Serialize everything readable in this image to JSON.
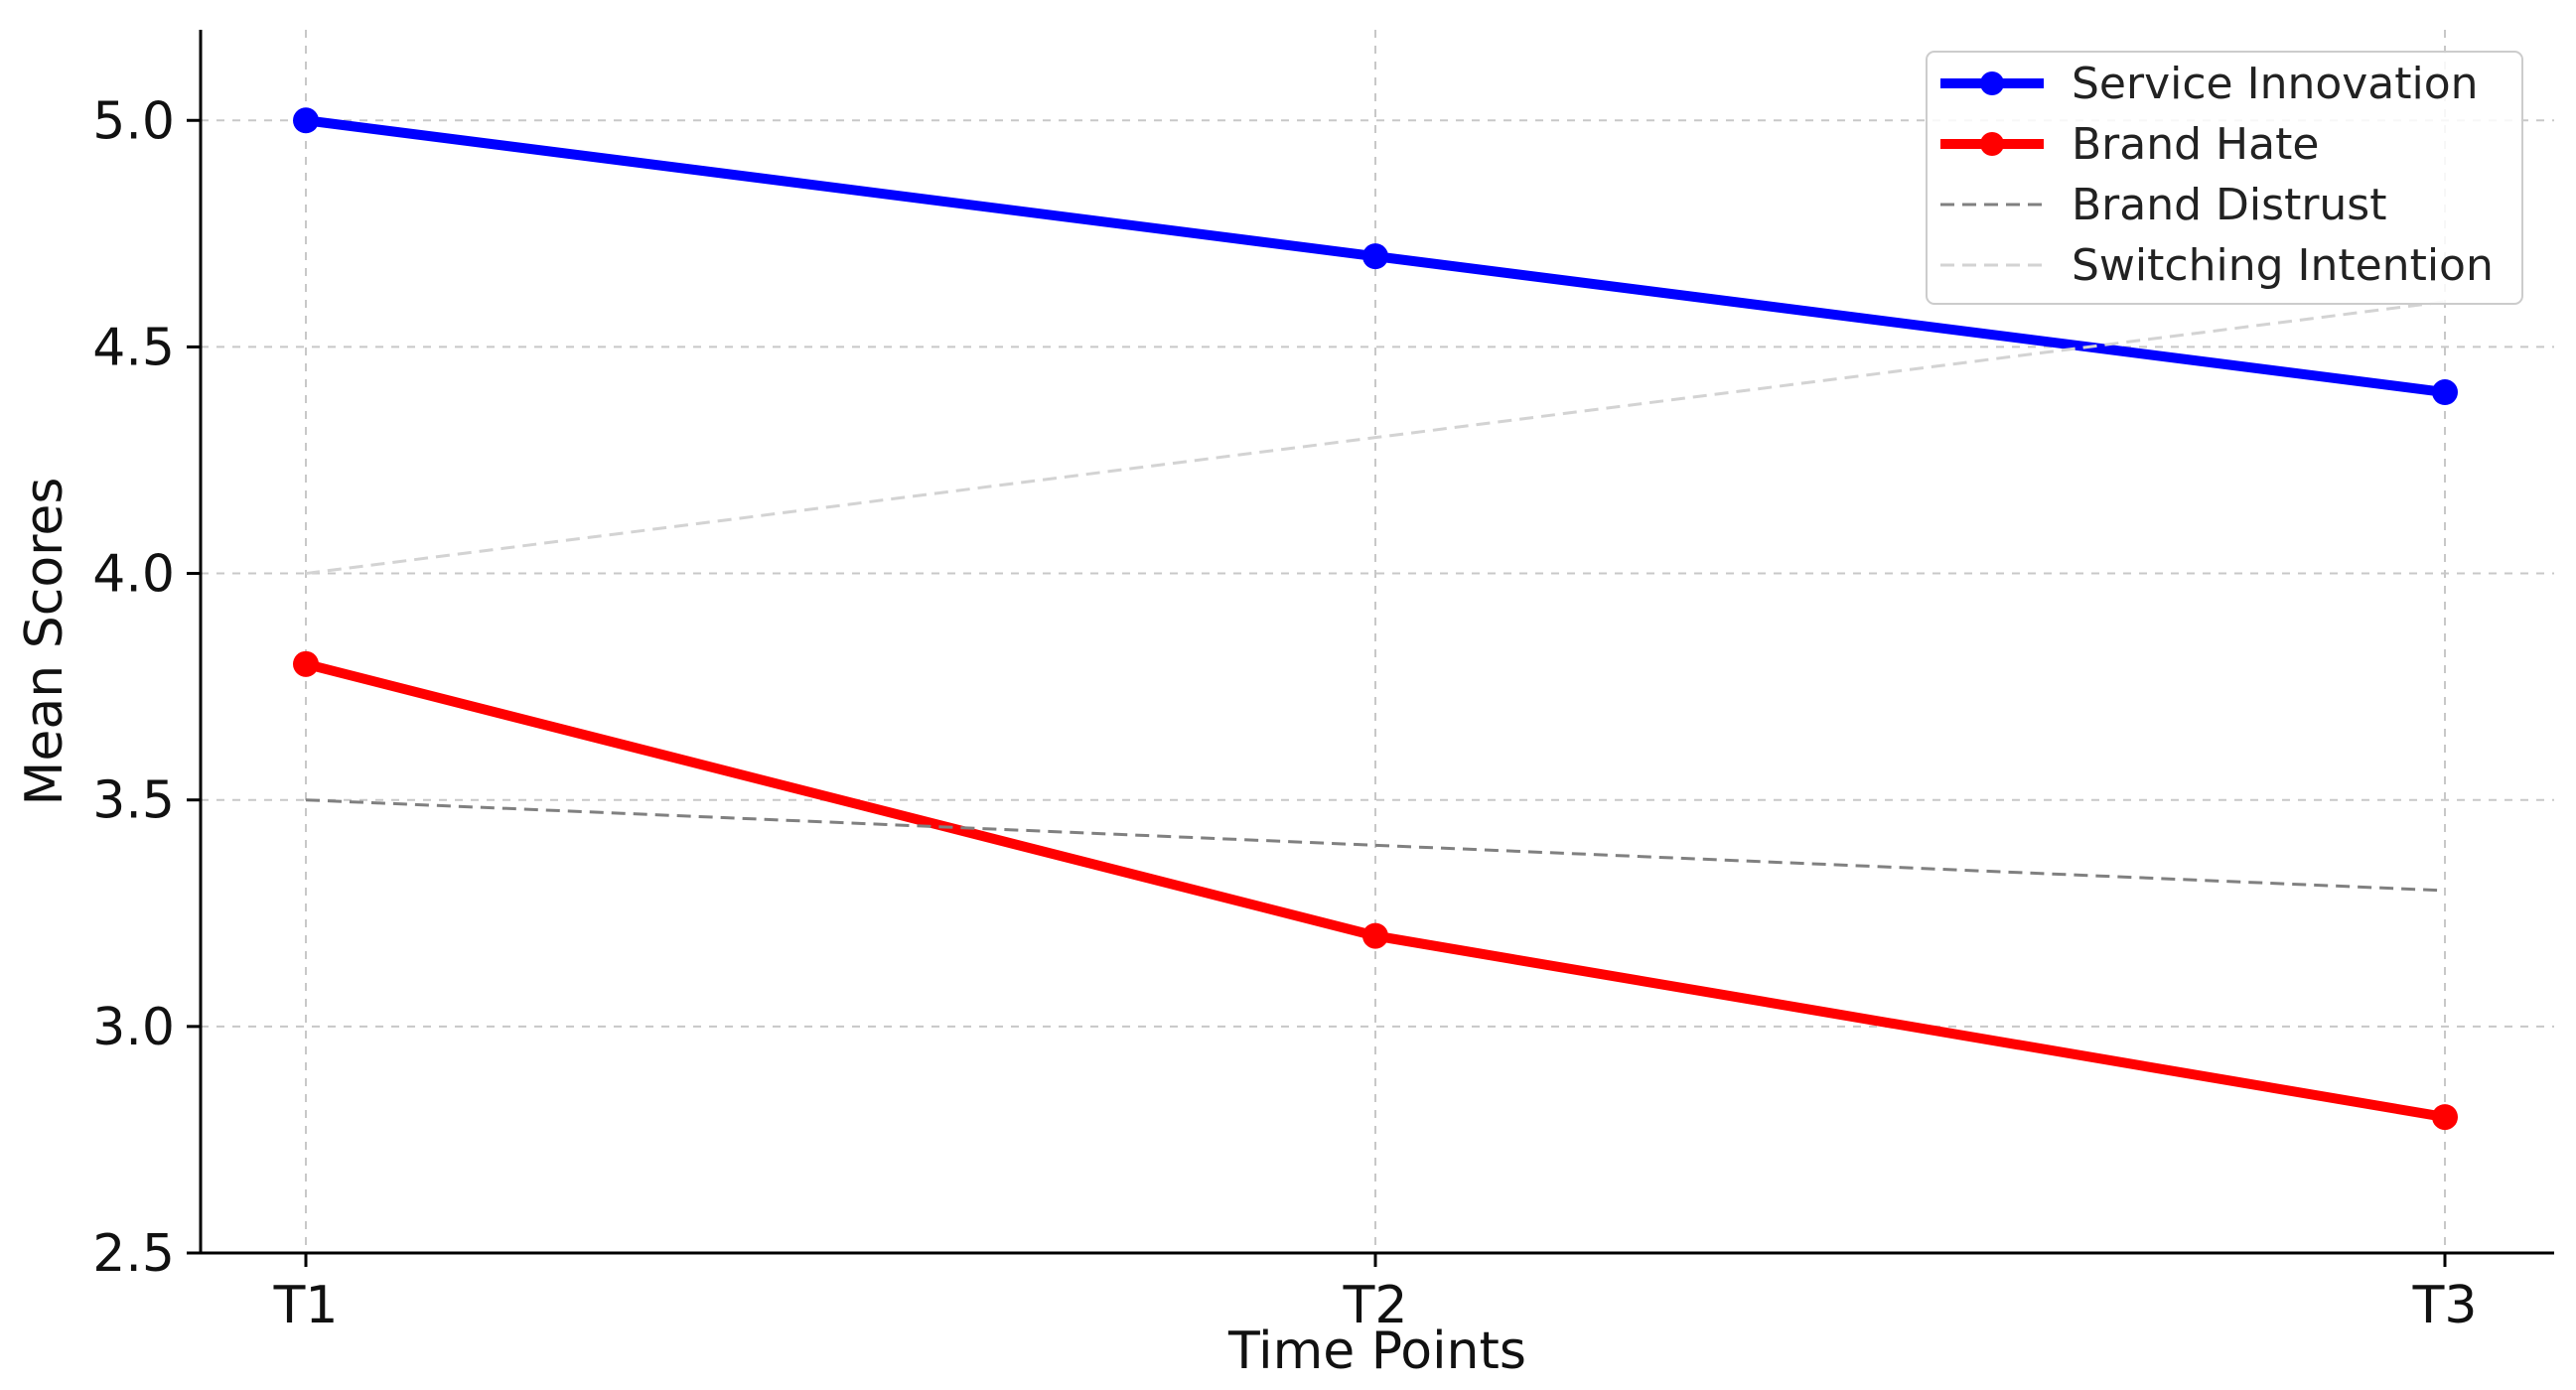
{
  "chart_data": {
    "type": "line",
    "title": "",
    "xlabel": "Time Points",
    "ylabel": "Mean Scores",
    "categories": [
      "T1",
      "T2",
      "T3"
    ],
    "ylim": [
      2.5,
      5.2
    ],
    "yticks": [
      "2.5",
      "3.0",
      "3.5",
      "4.0",
      "4.5",
      "5.0"
    ],
    "grid": true,
    "legend_position": "top-right",
    "series": [
      {
        "name": "Service Innovation",
        "values": [
          5.0,
          4.7,
          4.4
        ],
        "color": "#0000ff",
        "style": "solid",
        "markers": true
      },
      {
        "name": "Brand Hate",
        "values": [
          3.8,
          3.2,
          2.8
        ],
        "color": "#ff0000",
        "style": "solid",
        "markers": true
      },
      {
        "name": "Brand Distrust",
        "values": [
          3.5,
          3.4,
          3.3
        ],
        "color": "#808080",
        "style": "dashed",
        "markers": false
      },
      {
        "name": "Switching Intention",
        "values": [
          4.0,
          4.3,
          4.6
        ],
        "color": "#d3d3d3",
        "style": "dashed",
        "markers": false
      }
    ]
  }
}
